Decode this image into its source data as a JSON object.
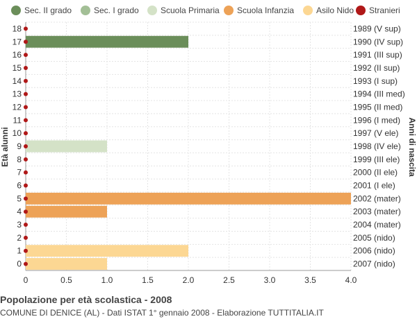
{
  "chart_data": {
    "type": "bar",
    "orientation": "horizontal",
    "title": "Popolazione per età scolastica - 2008",
    "subtitle": "COMUNE DI DENICE (AL) - Dati ISTAT 1° gennaio 2008 - Elaborazione TUTTITALIA.IT",
    "ylabel_left": "Età alunni",
    "ylabel_right": "Anni di nascita",
    "xlim": [
      0,
      4
    ],
    "x_ticks": [
      "0",
      "0.5",
      "1.0",
      "1.5",
      "2.0",
      "2.5",
      "3.0",
      "3.5",
      "4.0"
    ],
    "grid": true,
    "legend_position": "top",
    "ages": [
      "18",
      "17",
      "16",
      "15",
      "14",
      "13",
      "12",
      "11",
      "10",
      "9",
      "8",
      "7",
      "6",
      "5",
      "4",
      "3",
      "2",
      "1",
      "0"
    ],
    "birth_years": [
      "1989 (V sup)",
      "1990 (IV sup)",
      "1991 (III sup)",
      "1992 (II sup)",
      "1993 (I sup)",
      "1994 (III med)",
      "1995 (II med)",
      "1996 (I med)",
      "1997 (V ele)",
      "1998 (IV ele)",
      "1999 (III ele)",
      "2000 (II ele)",
      "2001 (I ele)",
      "2002 (mater)",
      "2003 (mater)",
      "2004 (mater)",
      "2005 (nido)",
      "2006 (nido)",
      "2007 (nido)"
    ],
    "series": [
      {
        "name": "Sec. II grado",
        "color": "#6b8e5a",
        "values": [
          0,
          2,
          0,
          0,
          0,
          0,
          0,
          0,
          0,
          0,
          0,
          0,
          0,
          0,
          0,
          0,
          0,
          0,
          0
        ]
      },
      {
        "name": "Sec. I grado",
        "color": "#a3bf96",
        "values": [
          0,
          0,
          0,
          0,
          0,
          0,
          0,
          0,
          0,
          0,
          0,
          0,
          0,
          0,
          0,
          0,
          0,
          0,
          0
        ]
      },
      {
        "name": "Scuola Primaria",
        "color": "#d4e2c7",
        "values": [
          0,
          0,
          0,
          0,
          0,
          0,
          0,
          0,
          0,
          1,
          0,
          0,
          0,
          0,
          0,
          0,
          0,
          0,
          0
        ]
      },
      {
        "name": "Scuola Infanzia",
        "color": "#eda257",
        "values": [
          0,
          0,
          0,
          0,
          0,
          0,
          0,
          0,
          0,
          0,
          0,
          0,
          0,
          4,
          1,
          0,
          0,
          0,
          0
        ]
      },
      {
        "name": "Asilo Nido",
        "color": "#fcd793",
        "values": [
          0,
          0,
          0,
          0,
          0,
          0,
          0,
          0,
          0,
          0,
          0,
          0,
          0,
          0,
          0,
          0,
          0,
          2,
          1
        ]
      },
      {
        "name": "Stranieri",
        "color": "#b01818",
        "marker": "dot",
        "values": [
          0,
          0,
          0,
          0,
          0,
          0,
          0,
          0,
          0,
          0,
          0,
          0,
          0,
          0,
          0,
          0,
          0,
          0,
          0
        ]
      }
    ]
  }
}
